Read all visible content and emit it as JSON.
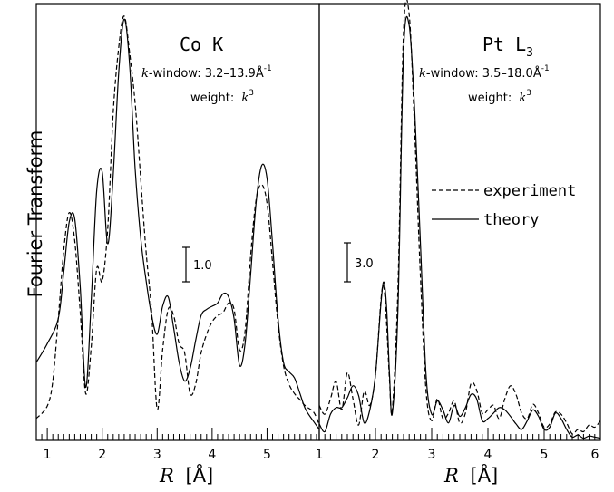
{
  "chart_data": {
    "type": "line",
    "ylabel": "Fourier Transform",
    "legend": {
      "placement": "right panel, middle-right",
      "entries": [
        {
          "label": "experiment",
          "style": "dashed"
        },
        {
          "label": "theory",
          "style": "solid"
        }
      ]
    },
    "panels": [
      {
        "edge": "Co K",
        "window_prefix": "-window: 3.2–13.9Å",
        "window_exp": "-1",
        "weight_prefix": "weight:",
        "scale_bar_label": "1.0",
        "xlabel": "[Å]",
        "xlim": [
          0.8,
          5.95
        ],
        "xticks": [
          "1",
          "2",
          "3",
          "4",
          "5"
        ],
        "ylim": [
          0,
          14.0
        ],
        "scale_bar": 1.0,
        "series": [
          {
            "name": "theory",
            "style": "solid",
            "x": [
              0.8,
              1.0,
              1.2,
              1.3,
              1.4,
              1.5,
              1.6,
              1.7,
              1.8,
              1.9,
              2.0,
              2.1,
              2.2,
              2.3,
              2.4,
              2.5,
              2.6,
              2.7,
              2.8,
              2.9,
              3.0,
              3.1,
              3.2,
              3.3,
              3.4,
              3.5,
              3.6,
              3.7,
              3.8,
              3.9,
              4.0,
              4.1,
              4.2,
              4.3,
              4.4,
              4.5,
              4.6,
              4.7,
              4.8,
              4.9,
              5.0,
              5.1,
              5.2,
              5.3,
              5.4,
              5.5,
              5.6,
              5.7,
              5.85,
              5.95
            ],
            "y": [
              2.5,
              3.1,
              3.9,
              5.4,
              7.0,
              7.1,
              4.9,
              1.7,
              4.5,
              8.0,
              8.6,
              6.3,
              8.5,
              11.8,
              13.5,
              12.0,
              8.7,
              6.5,
              5.1,
              4.0,
              3.4,
              4.3,
              4.6,
              3.6,
              2.5,
              1.9,
              2.3,
              3.2,
              4.0,
              4.2,
              4.3,
              4.4,
              4.7,
              4.6,
              3.9,
              2.4,
              3.1,
              5.3,
              7.6,
              8.8,
              8.4,
              6.3,
              3.9,
              2.5,
              2.2,
              2.0,
              1.5,
              1.0,
              0.6,
              0.35
            ]
          },
          {
            "name": "experiment",
            "style": "dashed",
            "x": [
              0.8,
              1.0,
              1.1,
              1.2,
              1.3,
              1.4,
              1.5,
              1.6,
              1.7,
              1.8,
              1.9,
              2.0,
              2.1,
              2.2,
              2.3,
              2.4,
              2.5,
              2.6,
              2.7,
              2.8,
              2.9,
              3.0,
              3.1,
              3.2,
              3.3,
              3.4,
              3.5,
              3.6,
              3.7,
              3.8,
              3.9,
              4.0,
              4.1,
              4.2,
              4.3,
              4.4,
              4.5,
              4.6,
              4.7,
              4.8,
              4.9,
              5.0,
              5.1,
              5.2,
              5.3,
              5.4,
              5.5,
              5.6,
              5.7,
              5.85,
              5.95
            ],
            "y": [
              0.7,
              1.1,
              1.9,
              3.9,
              6.1,
              7.3,
              6.4,
              4.1,
              1.5,
              3.0,
              5.5,
              5.1,
              6.8,
              10.5,
              12.6,
              13.6,
              12.4,
              10.8,
              8.4,
              6.0,
              4.1,
              1.0,
              2.9,
              4.2,
              4.0,
              3.1,
              2.8,
              1.5,
              1.8,
              2.8,
              3.4,
              3.8,
              4.0,
              4.1,
              4.4,
              4.2,
              2.9,
              3.5,
              5.9,
              7.7,
              8.2,
              7.6,
              5.7,
              3.7,
              2.4,
              1.8,
              1.5,
              1.3,
              1.1,
              0.9,
              0.5
            ]
          }
        ]
      },
      {
        "edge": "Pt L",
        "edge_sub": "3",
        "window_prefix": "-window: 3.5–18.0Å",
        "window_exp": "-1",
        "weight_prefix": "weight:",
        "scale_bar_label": "3.0",
        "xlabel": "[Å]",
        "xlim": [
          1.0,
          6.0
        ],
        "xticks": [
          "1",
          "2",
          "3",
          "4",
          "5",
          "6"
        ],
        "ylim": [
          0,
          40.0
        ],
        "scale_bar": 3.0,
        "series": [
          {
            "name": "theory",
            "style": "solid",
            "x": [
              1.0,
              1.1,
              1.2,
              1.3,
              1.4,
              1.5,
              1.6,
              1.7,
              1.8,
              1.9,
              2.0,
              2.1,
              2.15,
              2.2,
              2.25,
              2.3,
              2.4,
              2.5,
              2.6,
              2.7,
              2.8,
              2.9,
              3.0,
              3.1,
              3.2,
              3.3,
              3.4,
              3.5,
              3.6,
              3.7,
              3.8,
              3.9,
              4.0,
              4.1,
              4.2,
              4.3,
              4.4,
              4.5,
              4.6,
              4.7,
              4.8,
              4.9,
              5.0,
              5.1,
              5.2,
              5.3,
              5.4,
              5.5,
              5.6,
              5.7,
              5.8,
              5.9,
              6.0
            ],
            "y": [
              1.5,
              0.8,
              2.4,
              3.0,
              3.0,
              3.9,
              5.0,
              4.1,
              1.6,
              2.8,
              6.0,
              12.7,
              14.5,
              12.0,
              6.0,
              2.5,
              12.0,
              35.6,
              38.0,
              30.0,
              18.0,
              6.0,
              2.4,
              3.6,
              2.8,
              1.6,
              3.2,
              2.2,
              3.0,
              4.2,
              3.8,
              1.8,
              2.0,
              2.5,
              3.0,
              2.8,
              2.2,
              1.5,
              1.0,
              1.8,
              2.8,
              2.2,
              1.0,
              1.2,
              2.5,
              2.0,
              1.0,
              0.3,
              0.5,
              0.2,
              0.4,
              0.3,
              0.2
            ]
          },
          {
            "name": "experiment",
            "style": "dashed",
            "x": [
              1.0,
              1.1,
              1.2,
              1.3,
              1.4,
              1.5,
              1.6,
              1.7,
              1.8,
              1.9,
              2.0,
              2.1,
              2.15,
              2.2,
              2.25,
              2.3,
              2.4,
              2.5,
              2.6,
              2.7,
              2.8,
              2.9,
              3.0,
              3.1,
              3.2,
              3.3,
              3.4,
              3.5,
              3.6,
              3.7,
              3.8,
              3.9,
              4.0,
              4.1,
              4.2,
              4.3,
              4.4,
              4.5,
              4.6,
              4.7,
              4.8,
              4.9,
              5.0,
              5.1,
              5.2,
              5.3,
              5.4,
              5.5,
              5.6,
              5.7,
              5.8,
              5.9,
              6.0
            ],
            "y": [
              3.2,
              2.4,
              3.8,
              5.4,
              2.8,
              6.2,
              3.8,
              1.4,
              4.5,
              3.2,
              6.0,
              13.0,
              14.0,
              10.5,
              5.5,
              2.8,
              14.0,
              37.5,
              39.0,
              28.0,
              15.0,
              4.5,
              1.8,
              3.8,
              2.0,
              2.5,
              3.6,
              1.6,
              2.5,
              5.2,
              4.6,
              2.5,
              2.8,
              3.2,
              2.0,
              3.8,
              5.0,
              4.2,
              2.5,
              2.0,
              3.3,
              2.5,
              1.2,
              1.5,
              2.6,
              2.4,
              1.6,
              0.6,
              1.0,
              0.8,
              1.4,
              1.2,
              1.8
            ]
          }
        ]
      }
    ]
  }
}
